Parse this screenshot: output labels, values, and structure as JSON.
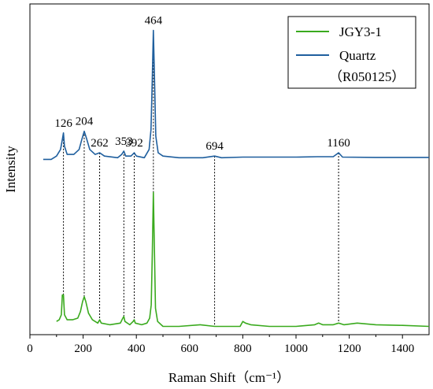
{
  "chart_data": {
    "type": "line",
    "xlabel": "Raman Shift（cm⁻¹）",
    "ylabel": "Intensity",
    "xlim": [
      0,
      1500
    ],
    "xticks": [
      "0",
      "200",
      "400",
      "600",
      "800",
      "1000",
      "1200",
      "1400"
    ],
    "xtick_values": [
      0,
      200,
      400,
      600,
      800,
      1000,
      1200,
      1400
    ],
    "ylim": [
      0,
      1
    ],
    "yticks_shown": false,
    "grid": false,
    "legend_position": "top-right",
    "peaks": [
      {
        "label": "126",
        "x": 126
      },
      {
        "label": "204",
        "x": 204
      },
      {
        "label": "262",
        "x": 262
      },
      {
        "label": "353",
        "x": 353
      },
      {
        "label": "392",
        "x": 392
      },
      {
        "label": "464",
        "x": 464
      },
      {
        "label": "694",
        "x": 694
      },
      {
        "label": "1160",
        "x": 1160
      }
    ],
    "series": [
      {
        "name": "JGY3-1",
        "color": "#3aaa1e",
        "points": [
          [
            100,
            0.04
          ],
          [
            110,
            0.045
          ],
          [
            118,
            0.06
          ],
          [
            122,
            0.12
          ],
          [
            126,
            0.12
          ],
          [
            130,
            0.06
          ],
          [
            140,
            0.045
          ],
          [
            160,
            0.045
          ],
          [
            180,
            0.05
          ],
          [
            190,
            0.07
          ],
          [
            198,
            0.1
          ],
          [
            204,
            0.115
          ],
          [
            210,
            0.1
          ],
          [
            220,
            0.065
          ],
          [
            235,
            0.045
          ],
          [
            255,
            0.035
          ],
          [
            262,
            0.045
          ],
          [
            268,
            0.035
          ],
          [
            300,
            0.03
          ],
          [
            340,
            0.035
          ],
          [
            349,
            0.05
          ],
          [
            353,
            0.055
          ],
          [
            357,
            0.04
          ],
          [
            375,
            0.03
          ],
          [
            388,
            0.04
          ],
          [
            392,
            0.045
          ],
          [
            396,
            0.035
          ],
          [
            420,
            0.03
          ],
          [
            440,
            0.035
          ],
          [
            450,
            0.05
          ],
          [
            456,
            0.09
          ],
          [
            460,
            0.25
          ],
          [
            464,
            0.43
          ],
          [
            468,
            0.25
          ],
          [
            472,
            0.08
          ],
          [
            480,
            0.04
          ],
          [
            500,
            0.025
          ],
          [
            560,
            0.025
          ],
          [
            640,
            0.03
          ],
          [
            694,
            0.025
          ],
          [
            760,
            0.025
          ],
          [
            790,
            0.025
          ],
          [
            800,
            0.04
          ],
          [
            810,
            0.035
          ],
          [
            830,
            0.03
          ],
          [
            900,
            0.025
          ],
          [
            1000,
            0.025
          ],
          [
            1070,
            0.03
          ],
          [
            1085,
            0.035
          ],
          [
            1100,
            0.03
          ],
          [
            1140,
            0.03
          ],
          [
            1160,
            0.035
          ],
          [
            1180,
            0.03
          ],
          [
            1230,
            0.035
          ],
          [
            1300,
            0.03
          ],
          [
            1400,
            0.028
          ],
          [
            1500,
            0.025
          ]
        ]
      },
      {
        "name": "Quartz\n（R050125）",
        "color": "#1f5f9e",
        "points": [
          [
            50,
            0.53
          ],
          [
            80,
            0.53
          ],
          [
            100,
            0.54
          ],
          [
            115,
            0.56
          ],
          [
            122,
            0.59
          ],
          [
            126,
            0.61
          ],
          [
            130,
            0.57
          ],
          [
            140,
            0.545
          ],
          [
            165,
            0.545
          ],
          [
            185,
            0.56
          ],
          [
            195,
            0.59
          ],
          [
            204,
            0.615
          ],
          [
            212,
            0.595
          ],
          [
            225,
            0.56
          ],
          [
            245,
            0.545
          ],
          [
            262,
            0.55
          ],
          [
            280,
            0.54
          ],
          [
            330,
            0.535
          ],
          [
            345,
            0.545
          ],
          [
            353,
            0.555
          ],
          [
            360,
            0.54
          ],
          [
            380,
            0.54
          ],
          [
            392,
            0.55
          ],
          [
            400,
            0.54
          ],
          [
            430,
            0.535
          ],
          [
            448,
            0.56
          ],
          [
            455,
            0.62
          ],
          [
            460,
            0.78
          ],
          [
            464,
            0.92
          ],
          [
            468,
            0.78
          ],
          [
            473,
            0.6
          ],
          [
            482,
            0.55
          ],
          [
            500,
            0.54
          ],
          [
            560,
            0.535
          ],
          [
            650,
            0.535
          ],
          [
            694,
            0.54
          ],
          [
            720,
            0.535
          ],
          [
            800,
            0.537
          ],
          [
            900,
            0.537
          ],
          [
            1000,
            0.537
          ],
          [
            1080,
            0.538
          ],
          [
            1140,
            0.538
          ],
          [
            1160,
            0.55
          ],
          [
            1175,
            0.537
          ],
          [
            1300,
            0.536
          ],
          [
            1400,
            0.536
          ],
          [
            1500,
            0.536
          ]
        ]
      }
    ]
  },
  "legend": {
    "series_1_label": "JGY3-1",
    "series_2_label": "Quartz",
    "series_2_sub": "（R050125）"
  }
}
